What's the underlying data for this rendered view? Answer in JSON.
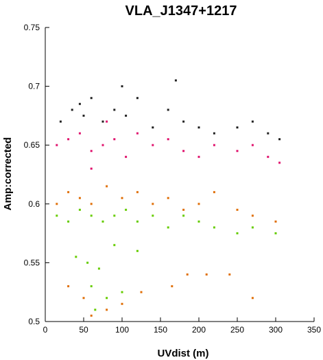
{
  "chart_data": {
    "type": "scatter",
    "title": "VLA_J1347+1217",
    "xlabel": "UVdist (m)",
    "ylabel": "Amp:corrected",
    "xlim": [
      0,
      350
    ],
    "ylim": [
      0.5,
      0.75
    ],
    "xticks": [
      0,
      50,
      100,
      150,
      200,
      250,
      300,
      350
    ],
    "yticks": [
      0.5,
      0.55,
      0.6,
      0.65,
      0.7,
      0.75
    ],
    "xtick_labels": [
      "0",
      "50",
      "100",
      "150",
      "200",
      "250",
      "300",
      "350"
    ],
    "ytick_labels": [
      "0.5",
      "0.55",
      "0.6",
      "0.65",
      "0.7",
      "0.75"
    ],
    "grid": false,
    "legend": "none",
    "series": [
      {
        "color": "#222222",
        "points": [
          [
            20,
            0.67
          ],
          [
            35,
            0.68
          ],
          [
            50,
            0.675
          ],
          [
            60,
            0.69
          ],
          [
            75,
            0.67
          ],
          [
            90,
            0.68
          ],
          [
            105,
            0.675
          ],
          [
            120,
            0.69
          ],
          [
            140,
            0.665
          ],
          [
            160,
            0.68
          ],
          [
            180,
            0.67
          ],
          [
            200,
            0.665
          ],
          [
            220,
            0.66
          ],
          [
            250,
            0.665
          ],
          [
            270,
            0.67
          ],
          [
            290,
            0.66
          ],
          [
            305,
            0.655
          ],
          [
            100,
            0.7
          ],
          [
            170,
            0.705
          ],
          [
            45,
            0.685
          ]
        ]
      },
      {
        "color": "#e0146e",
        "points": [
          [
            15,
            0.65
          ],
          [
            30,
            0.655
          ],
          [
            45,
            0.66
          ],
          [
            60,
            0.645
          ],
          [
            75,
            0.65
          ],
          [
            90,
            0.655
          ],
          [
            105,
            0.64
          ],
          [
            120,
            0.66
          ],
          [
            140,
            0.65
          ],
          [
            160,
            0.655
          ],
          [
            180,
            0.645
          ],
          [
            200,
            0.64
          ],
          [
            220,
            0.65
          ],
          [
            250,
            0.645
          ],
          [
            270,
            0.65
          ],
          [
            290,
            0.64
          ],
          [
            305,
            0.635
          ],
          [
            60,
            0.63
          ],
          [
            80,
            0.67
          ]
        ]
      },
      {
        "color": "#e0700a",
        "points": [
          [
            15,
            0.6
          ],
          [
            30,
            0.61
          ],
          [
            45,
            0.605
          ],
          [
            60,
            0.6
          ],
          [
            80,
            0.615
          ],
          [
            100,
            0.605
          ],
          [
            120,
            0.61
          ],
          [
            140,
            0.6
          ],
          [
            160,
            0.605
          ],
          [
            180,
            0.595
          ],
          [
            200,
            0.6
          ],
          [
            220,
            0.61
          ],
          [
            250,
            0.595
          ],
          [
            270,
            0.59
          ],
          [
            300,
            0.585
          ],
          [
            30,
            0.53
          ],
          [
            50,
            0.52
          ],
          [
            60,
            0.505
          ],
          [
            80,
            0.51
          ],
          [
            100,
            0.515
          ],
          [
            125,
            0.525
          ],
          [
            165,
            0.53
          ],
          [
            185,
            0.54
          ],
          [
            210,
            0.54
          ],
          [
            240,
            0.54
          ],
          [
            270,
            0.52
          ]
        ]
      },
      {
        "color": "#66cc00",
        "points": [
          [
            15,
            0.59
          ],
          [
            30,
            0.585
          ],
          [
            45,
            0.595
          ],
          [
            60,
            0.59
          ],
          [
            75,
            0.585
          ],
          [
            90,
            0.59
          ],
          [
            105,
            0.595
          ],
          [
            120,
            0.585
          ],
          [
            140,
            0.59
          ],
          [
            160,
            0.58
          ],
          [
            180,
            0.59
          ],
          [
            200,
            0.585
          ],
          [
            220,
            0.58
          ],
          [
            250,
            0.575
          ],
          [
            270,
            0.58
          ],
          [
            300,
            0.575
          ],
          [
            40,
            0.555
          ],
          [
            55,
            0.55
          ],
          [
            70,
            0.545
          ],
          [
            60,
            0.53
          ],
          [
            80,
            0.52
          ],
          [
            100,
            0.525
          ],
          [
            65,
            0.51
          ],
          [
            90,
            0.565
          ],
          [
            120,
            0.56
          ]
        ]
      }
    ]
  }
}
